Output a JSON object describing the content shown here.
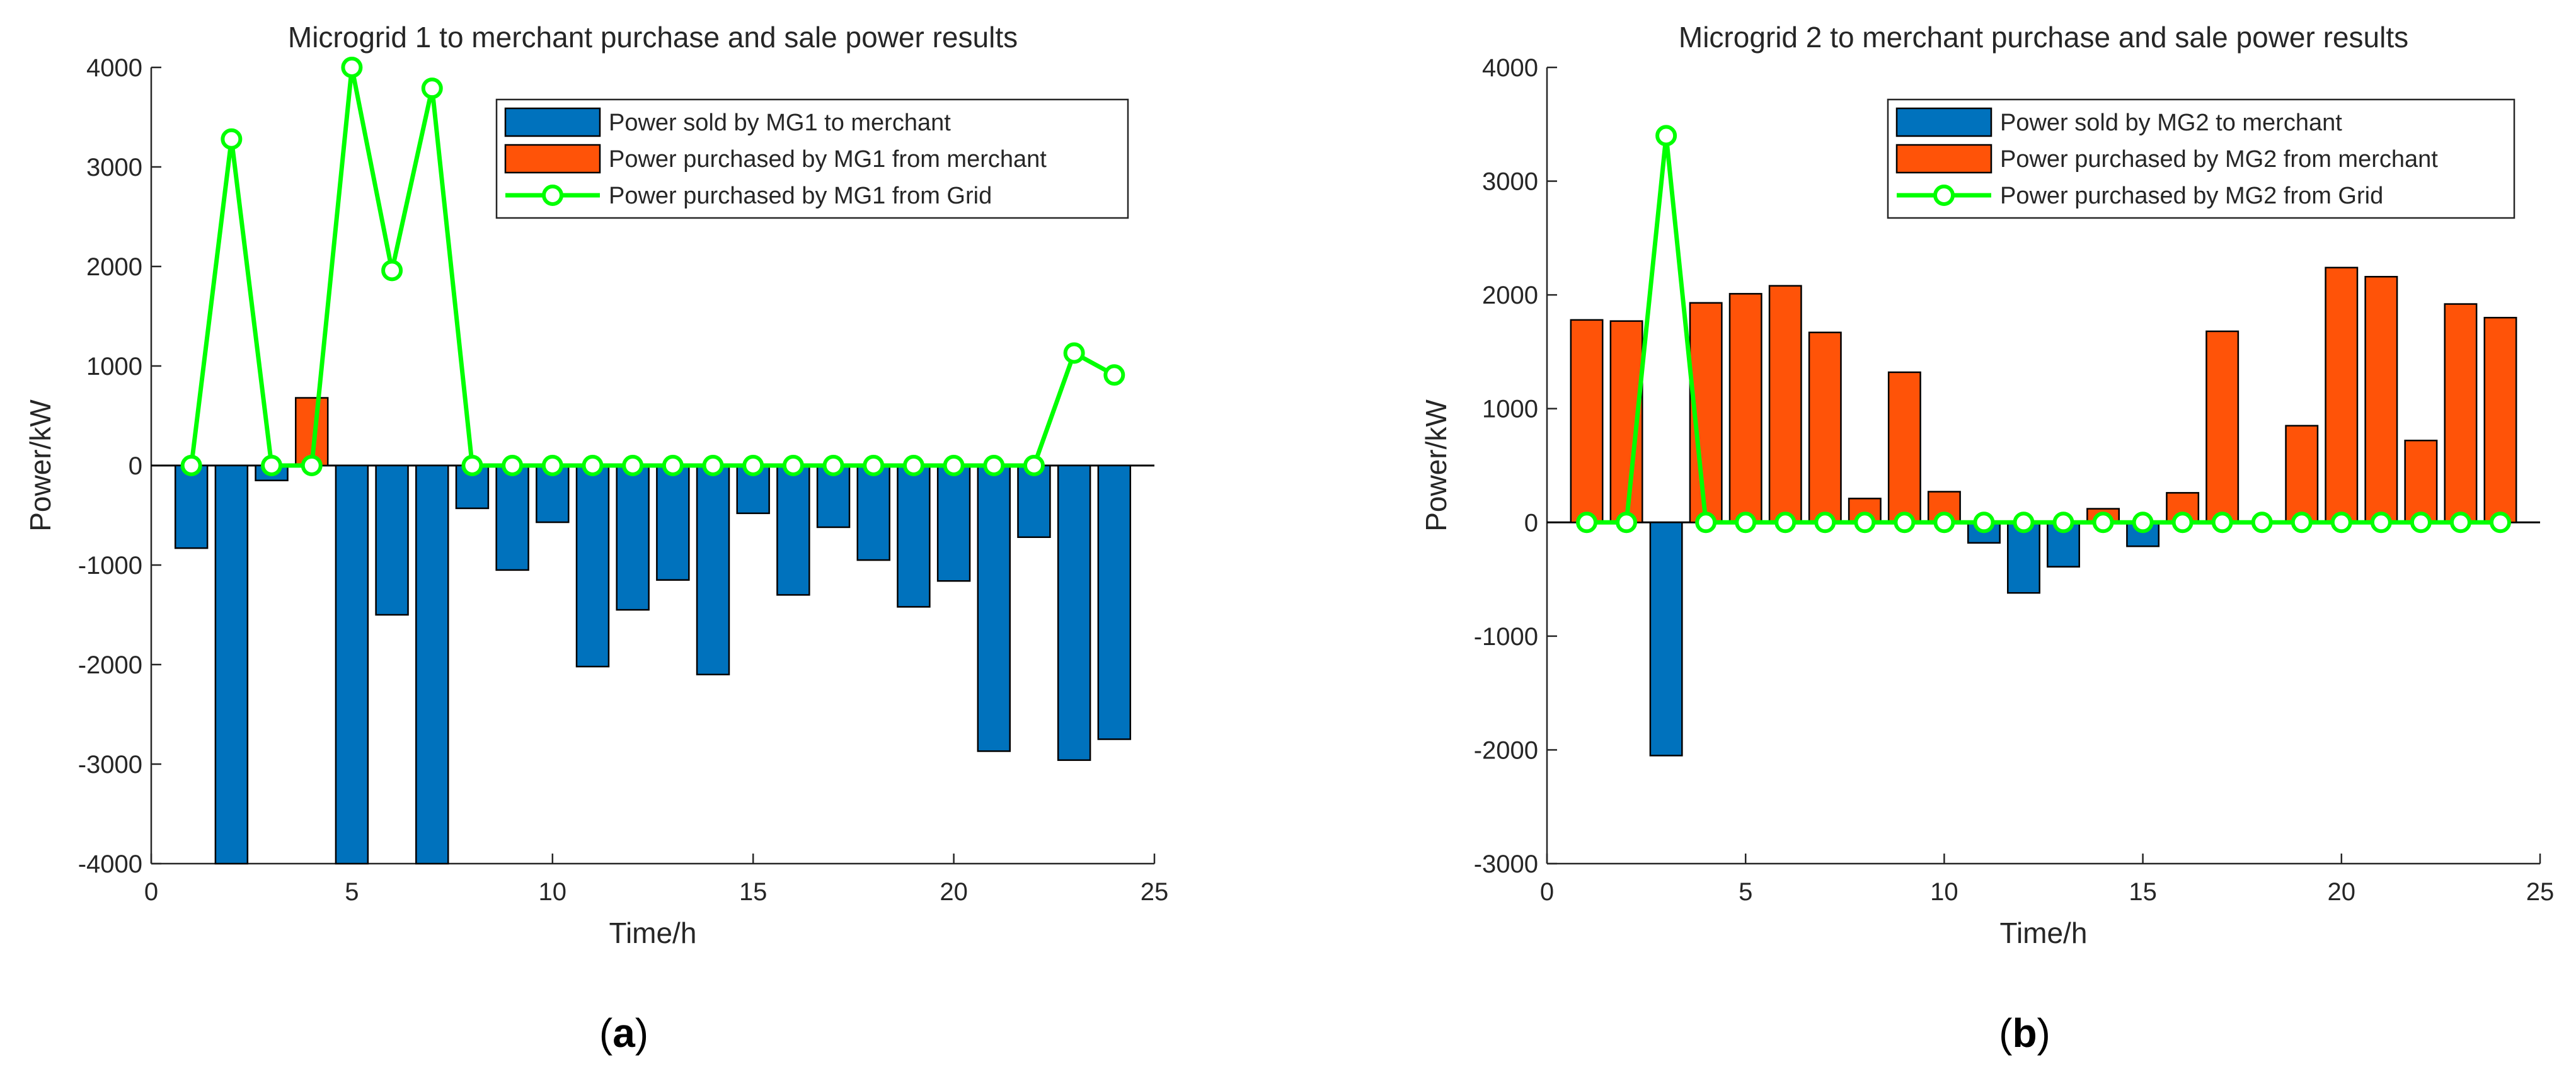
{
  "chart_data": [
    {
      "type": "bar",
      "panel_caption": "a",
      "title": "Microgrid 1 to merchant purchase and sale power results",
      "xlabel": "Time/h",
      "ylabel": "Power/kW",
      "xlim": [
        0,
        25
      ],
      "ylim": [
        -4000,
        4000
      ],
      "xticks": [
        0,
        5,
        10,
        15,
        20,
        25
      ],
      "yticks": [
        -4000,
        -3000,
        -2000,
        -1000,
        0,
        1000,
        2000,
        3000,
        4000
      ],
      "x": [
        1,
        2,
        3,
        4,
        5,
        6,
        7,
        8,
        9,
        10,
        11,
        12,
        13,
        14,
        15,
        16,
        17,
        18,
        19,
        20,
        21,
        22,
        23,
        24
      ],
      "legend_position": "top-right",
      "series": [
        {
          "name": "Power sold by MG1 to merchant",
          "kind": "bar",
          "color": "#0072BD",
          "values": [
            -830,
            -4000,
            -150,
            0,
            -4000,
            -1500,
            -4000,
            -430,
            -1050,
            -570,
            -2020,
            -1450,
            -1150,
            -2100,
            -480,
            -1300,
            -620,
            -950,
            -1420,
            -1160,
            -2870,
            -720,
            -2960,
            -2750
          ]
        },
        {
          "name": "Power purchased by MG1 from merchant",
          "kind": "bar",
          "color": "#FF5308",
          "values": [
            0,
            0,
            0,
            680,
            0,
            0,
            0,
            0,
            0,
            0,
            0,
            0,
            0,
            0,
            0,
            0,
            0,
            0,
            0,
            0,
            0,
            0,
            0,
            0
          ]
        },
        {
          "name": "Power purchased by MG1 from Grid",
          "kind": "line",
          "color": "#00FF00",
          "values": [
            0,
            3280,
            0,
            0,
            4000,
            1960,
            3790,
            0,
            0,
            0,
            0,
            0,
            0,
            0,
            0,
            0,
            0,
            0,
            0,
            0,
            0,
            0,
            1130,
            910
          ]
        }
      ]
    },
    {
      "type": "bar",
      "panel_caption": "b",
      "title": "Microgrid 2 to merchant purchase and sale power results",
      "xlabel": "Time/h",
      "ylabel": "Power/kW",
      "xlim": [
        0,
        25
      ],
      "ylim": [
        -3000,
        4000
      ],
      "xticks": [
        0,
        5,
        10,
        15,
        20,
        25
      ],
      "yticks": [
        -3000,
        -2000,
        -1000,
        0,
        1000,
        2000,
        3000,
        4000
      ],
      "x": [
        1,
        2,
        3,
        4,
        5,
        6,
        7,
        8,
        9,
        10,
        11,
        12,
        13,
        14,
        15,
        16,
        17,
        18,
        19,
        20,
        21,
        22,
        23,
        24
      ],
      "legend_position": "top-right",
      "series": [
        {
          "name": "Power sold by MG2 to merchant",
          "kind": "bar",
          "color": "#0072BD",
          "values": [
            0,
            0,
            -2050,
            0,
            0,
            0,
            0,
            0,
            0,
            0,
            -180,
            -620,
            -390,
            0,
            -210,
            0,
            0,
            0,
            0,
            0,
            0,
            0,
            0,
            0
          ]
        },
        {
          "name": "Power purchased by MG2 from merchant",
          "kind": "bar",
          "color": "#FF5308",
          "values": [
            1780,
            1770,
            0,
            1930,
            2010,
            2080,
            1670,
            210,
            1320,
            270,
            0,
            0,
            0,
            120,
            0,
            260,
            1680,
            0,
            850,
            2240,
            2160,
            720,
            1920,
            1800
          ]
        },
        {
          "name": "Power purchased by MG2 from Grid",
          "kind": "line",
          "color": "#00FF00",
          "values": [
            0,
            0,
            3400,
            0,
            0,
            0,
            0,
            0,
            0,
            0,
            0,
            0,
            0,
            0,
            0,
            0,
            0,
            0,
            0,
            0,
            0,
            0,
            0,
            0
          ]
        }
      ]
    }
  ]
}
